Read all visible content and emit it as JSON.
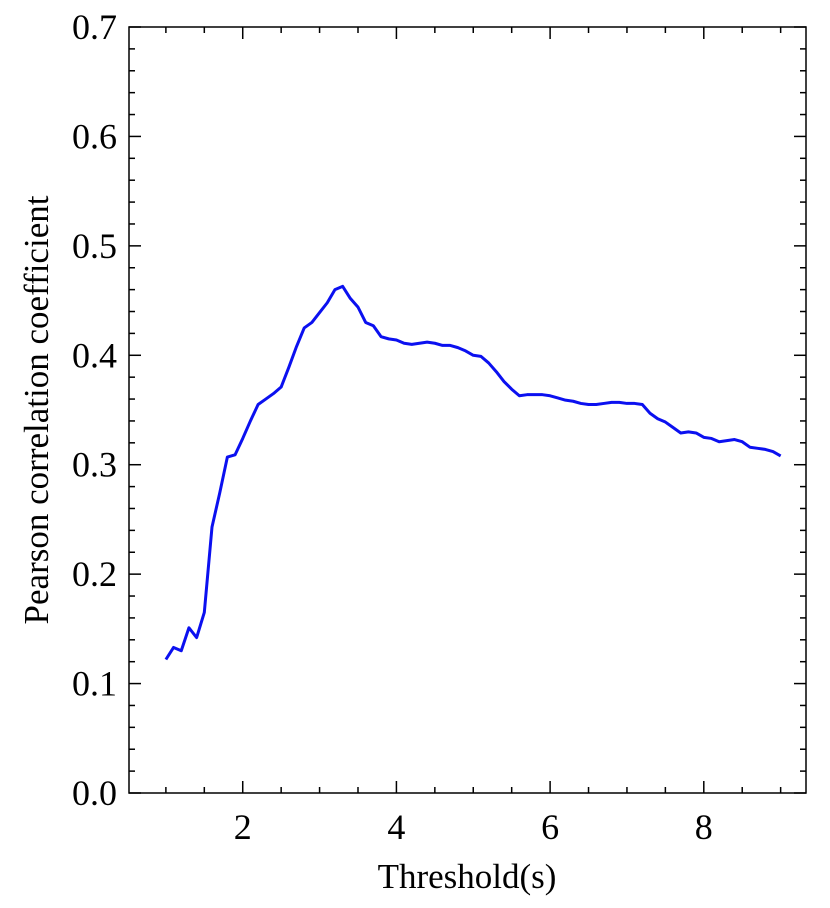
{
  "chart_data": {
    "type": "line",
    "xlabel": "Threshold(s)",
    "ylabel": "Pearson correlation coefficient",
    "x": [
      1.0,
      1.1,
      1.2,
      1.3,
      1.4,
      1.5,
      1.6,
      1.7,
      1.8,
      1.9,
      2.0,
      2.1,
      2.2,
      2.3,
      2.4,
      2.5,
      2.6,
      2.7,
      2.8,
      2.9,
      3.0,
      3.1,
      3.2,
      3.3,
      3.4,
      3.5,
      3.6,
      3.7,
      3.8,
      3.9,
      4.0,
      4.1,
      4.2,
      4.3,
      4.4,
      4.5,
      4.6,
      4.7,
      4.8,
      4.9,
      5.0,
      5.1,
      5.2,
      5.3,
      5.4,
      5.5,
      5.6,
      5.7,
      5.8,
      5.9,
      6.0,
      6.1,
      6.2,
      6.3,
      6.4,
      6.5,
      6.6,
      6.7,
      6.8,
      6.9,
      7.0,
      7.1,
      7.2,
      7.3,
      7.4,
      7.5,
      7.6,
      7.7,
      7.8,
      7.9,
      8.0,
      8.1,
      8.2,
      8.3,
      8.4,
      8.5,
      8.6,
      8.7,
      8.8,
      8.9,
      9.0
    ],
    "series": [
      {
        "color": "#0b10f0",
        "values": [
          0.122,
          0.133,
          0.13,
          0.151,
          0.142,
          0.165,
          0.243,
          0.274,
          0.307,
          0.309,
          0.324,
          0.34,
          0.355,
          0.36,
          0.365,
          0.371,
          0.389,
          0.408,
          0.425,
          0.43,
          0.439,
          0.448,
          0.46,
          0.463,
          0.452,
          0.444,
          0.43,
          0.427,
          0.417,
          0.415,
          0.414,
          0.411,
          0.41,
          0.411,
          0.412,
          0.411,
          0.409,
          0.409,
          0.407,
          0.404,
          0.4,
          0.399,
          0.393,
          0.385,
          0.376,
          0.369,
          0.363,
          0.364,
          0.364,
          0.364,
          0.363,
          0.361,
          0.359,
          0.358,
          0.356,
          0.355,
          0.355,
          0.356,
          0.357,
          0.357,
          0.356,
          0.356,
          0.355,
          0.347,
          0.342,
          0.339,
          0.334,
          0.329,
          0.33,
          0.329,
          0.325,
          0.324,
          0.321,
          0.322,
          0.323,
          0.321,
          0.316,
          0.315,
          0.314,
          0.312,
          0.308
        ]
      }
    ],
    "xlim": [
      0.52,
      9.33
    ],
    "ylim": [
      0,
      0.7
    ],
    "xticks": [
      2,
      4,
      6,
      8
    ],
    "yticks": [
      {
        "value": 0,
        "label": "0.0"
      },
      0.1,
      0.2,
      0.3,
      0.4,
      0.5,
      0.6,
      0.7
    ],
    "xminorticks": [
      1.0,
      1.5,
      2.5,
      3.0,
      3.5,
      4.5,
      5.0,
      5.5,
      6.5,
      7.0,
      7.5,
      8.5,
      9.0
    ],
    "yminorticks": [
      0.02,
      0.04,
      0.06,
      0.08,
      0.12,
      0.14,
      0.16,
      0.18,
      0.22,
      0.24,
      0.26,
      0.28,
      0.32,
      0.34,
      0.36,
      0.38,
      0.42,
      0.44,
      0.46,
      0.48,
      0.52,
      0.54,
      0.56,
      0.58,
      0.62,
      0.64,
      0.66,
      0.68
    ]
  }
}
